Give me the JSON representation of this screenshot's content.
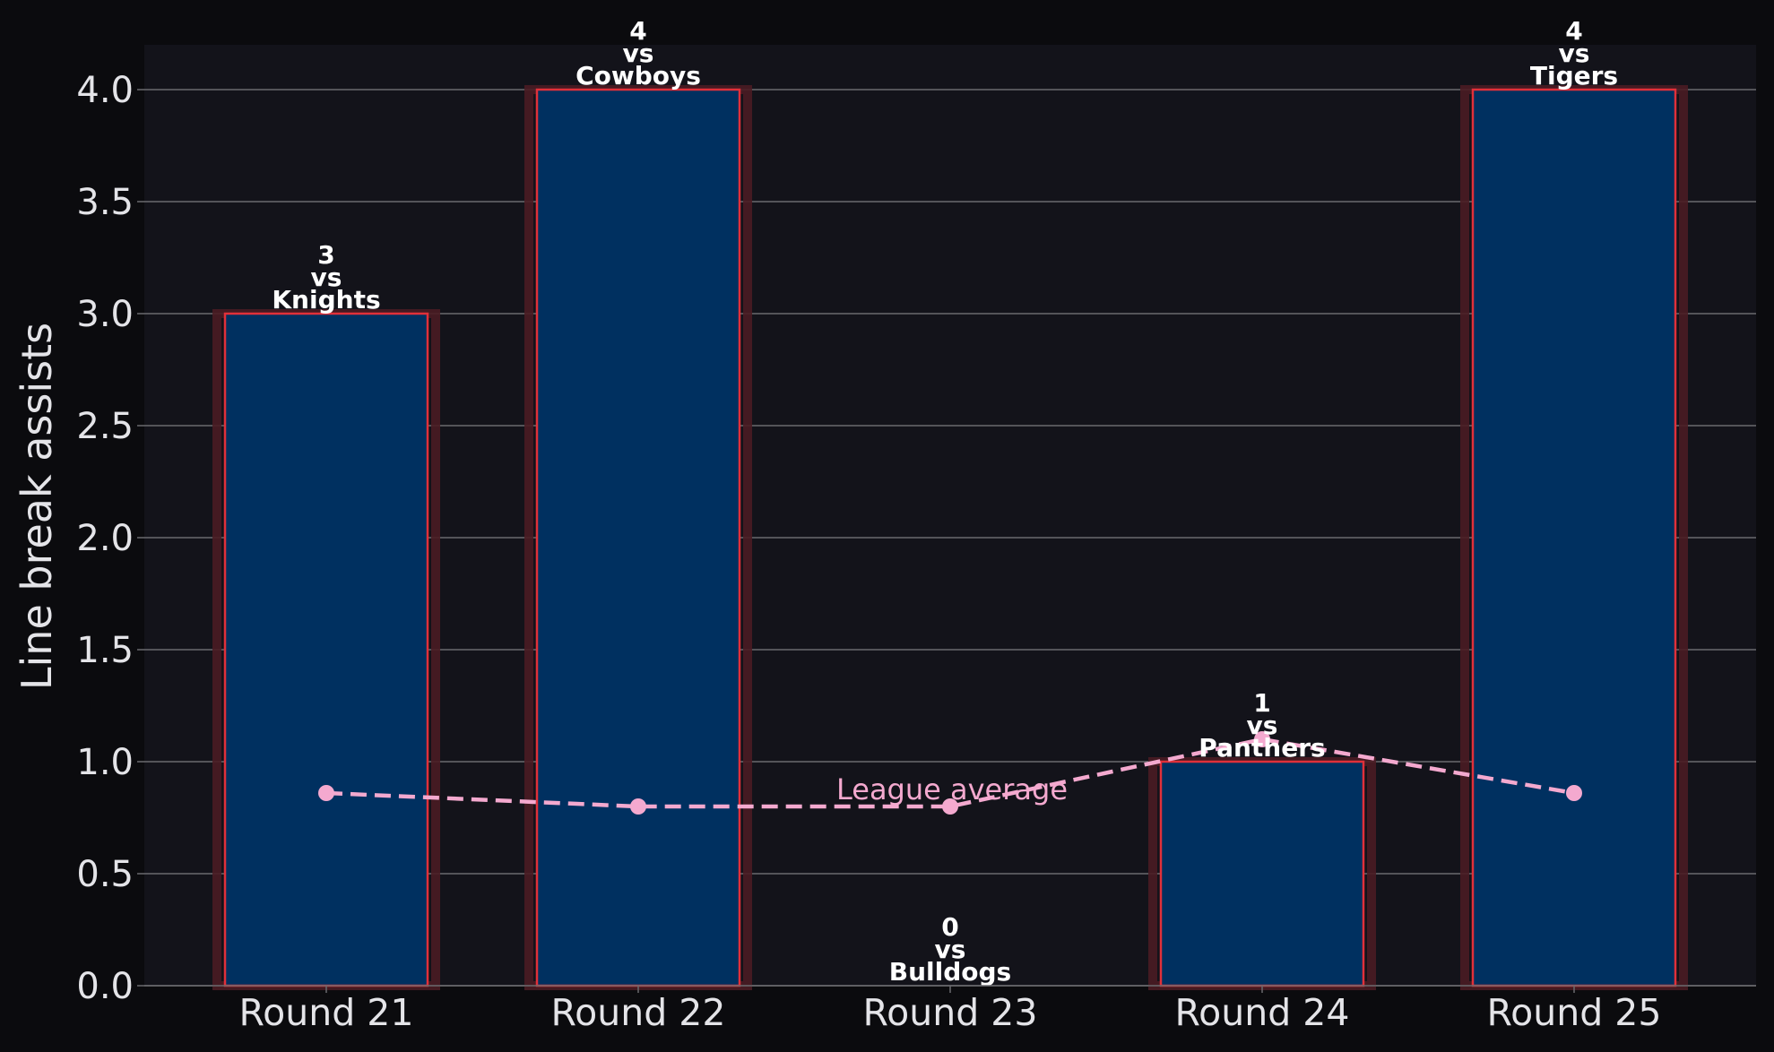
{
  "chart_data": {
    "type": "bar",
    "categories": [
      "Round 21",
      "Round 22",
      "Round 23",
      "Round 24",
      "Round 25"
    ],
    "values": [
      3,
      4,
      0,
      1,
      4
    ],
    "opponents": [
      "Knights",
      "Cowboys",
      "Bulldogs",
      "Panthers",
      "Tigers"
    ],
    "vs_text": "vs",
    "ylabel": "Line break assists",
    "xlabel": "",
    "title": "",
    "ylim": [
      0,
      4.2
    ],
    "yticks": [
      "0.0",
      "0.5",
      "1.0",
      "1.5",
      "2.0",
      "2.5",
      "3.0",
      "3.5",
      "4.0"
    ],
    "grid": "horizontal",
    "league_average": {
      "label": "League average",
      "values": [
        0.86,
        0.8,
        0.8,
        1.1,
        0.86
      ],
      "style": "dashed-line-with-markers"
    },
    "colors": {
      "page_background": "#0b0b0e",
      "plot_background": "#13131a",
      "bar_fill": "#003060",
      "bar_edge": "#e0303a",
      "bar_glow": "#4a1c24",
      "grid": "#6a6a6e",
      "average_line": "#f4a9cf",
      "text": "#e4e4e8",
      "bar_label": "#ffffff"
    }
  }
}
